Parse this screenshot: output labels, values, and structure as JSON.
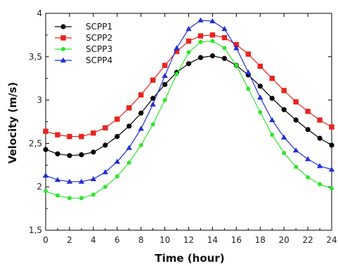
{
  "chart_data": {
    "type": "line",
    "title": "",
    "xlabel": "Time (hour)",
    "ylabel": "Velocity (m/s)",
    "xlim": [
      0,
      24
    ],
    "ylim": [
      1.5,
      4
    ],
    "x_ticks": [
      "0",
      "2",
      "4",
      "6",
      "8",
      "10",
      "12",
      "14",
      "16",
      "18",
      "20",
      "22",
      "24"
    ],
    "y_ticks": [
      "1,5",
      "2",
      "2,5",
      "3",
      "3,5",
      "4"
    ],
    "y_tick_values": [
      1.5,
      2,
      2.5,
      3,
      3.5,
      4
    ],
    "grid": false,
    "legend_position": "top-left",
    "x": [
      0,
      1,
      2,
      3,
      4,
      5,
      6,
      7,
      8,
      9,
      10,
      11,
      12,
      13,
      14,
      15,
      16,
      17,
      18,
      19,
      20,
      21,
      22,
      23,
      24
    ],
    "series": [
      {
        "name": "SCPP1",
        "color": "#000000",
        "marker": "circle",
        "values": [
          2.43,
          2.38,
          2.36,
          2.37,
          2.4,
          2.48,
          2.58,
          2.7,
          2.85,
          3.02,
          3.18,
          3.32,
          3.42,
          3.49,
          3.51,
          3.48,
          3.4,
          3.29,
          3.16,
          3.02,
          2.89,
          2.77,
          2.66,
          2.56,
          2.48
        ]
      },
      {
        "name": "SCPP2",
        "color": "#e8231f",
        "marker": "square",
        "values": [
          2.64,
          2.6,
          2.58,
          2.58,
          2.62,
          2.68,
          2.78,
          2.91,
          3.06,
          3.23,
          3.4,
          3.56,
          3.68,
          3.74,
          3.75,
          3.72,
          3.64,
          3.53,
          3.39,
          3.25,
          3.11,
          2.98,
          2.87,
          2.77,
          2.69
        ]
      },
      {
        "name": "SCPP3",
        "color": "#2ee62e",
        "marker": "circle",
        "values": [
          1.95,
          1.9,
          1.87,
          1.87,
          1.91,
          2.0,
          2.12,
          2.28,
          2.48,
          2.72,
          3.0,
          3.3,
          3.55,
          3.67,
          3.68,
          3.6,
          3.4,
          3.13,
          2.86,
          2.6,
          2.39,
          2.23,
          2.11,
          2.03,
          1.98
        ]
      },
      {
        "name": "SCPP4",
        "color": "#1f2fd6",
        "marker": "triangle",
        "values": [
          2.13,
          2.08,
          2.06,
          2.06,
          2.09,
          2.17,
          2.29,
          2.45,
          2.67,
          2.95,
          3.28,
          3.6,
          3.82,
          3.92,
          3.91,
          3.82,
          3.6,
          3.32,
          3.03,
          2.77,
          2.57,
          2.42,
          2.32,
          2.24,
          2.2
        ]
      }
    ]
  }
}
